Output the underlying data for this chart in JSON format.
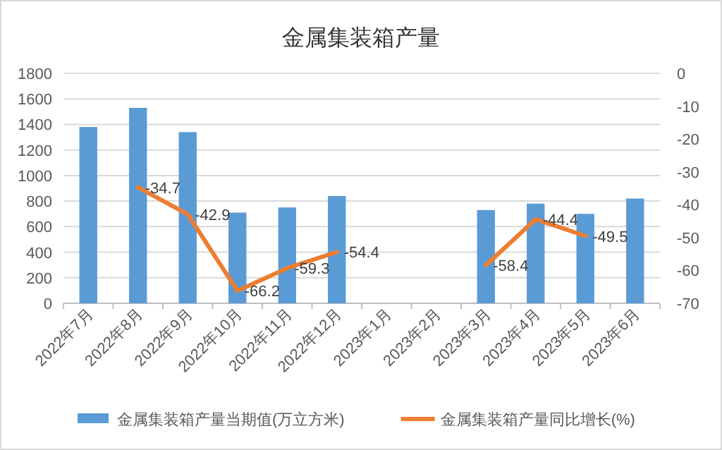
{
  "chart_data": {
    "type": "bar",
    "title": "金属集装箱产量",
    "categories": [
      "2022年7月",
      "2022年8月",
      "2022年9月",
      "2022年10月",
      "2022年11月",
      "2022年12月",
      "2023年1月",
      "2023年2月",
      "2023年3月",
      "2023年4月",
      "2023年5月",
      "2023年6月"
    ],
    "series": [
      {
        "name": "金属集装箱产量当期值(万立方米)",
        "color": "#5b9bd5",
        "values": [
          1380,
          1530,
          1340,
          710,
          750,
          840,
          null,
          null,
          730,
          780,
          700,
          820
        ]
      },
      {
        "name": "金属集装箱产量同比增长(%)",
        "type": "line",
        "axis": "y2",
        "color": "#ed7d31",
        "data_labels": true,
        "values": [
          null,
          -34.7,
          -42.9,
          -66.2,
          -59.3,
          -54.4,
          null,
          null,
          -58.4,
          -44.4,
          -49.5,
          null
        ]
      }
    ],
    "ylim": [
      0,
      1800
    ],
    "yticks": [
      0,
      200,
      400,
      600,
      800,
      1000,
      1200,
      1400,
      1600,
      1800
    ],
    "y2lim": [
      -70,
      0
    ],
    "y2ticks": [
      -70,
      -60,
      -50,
      -40,
      -30,
      -20,
      -10,
      0
    ],
    "grid": "y",
    "legend": "bottom"
  }
}
